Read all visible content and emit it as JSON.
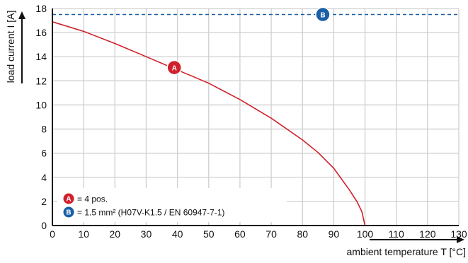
{
  "chart_data": {
    "type": "line",
    "xlabel": "ambient temperature T [°C]",
    "ylabel": "load current I [A]",
    "xlim": [
      0,
      130
    ],
    "ylim": [
      0,
      18
    ],
    "x_ticks": [
      0,
      10,
      20,
      30,
      40,
      50,
      60,
      70,
      80,
      90,
      100,
      110,
      120,
      130
    ],
    "y_ticks": [
      0,
      2,
      4,
      6,
      8,
      10,
      12,
      14,
      16,
      18
    ],
    "grid": true,
    "series": [
      {
        "name": "A",
        "style": "solid",
        "color": "#d0202b",
        "x": [
          0,
          10,
          20,
          30,
          40,
          50,
          60,
          70,
          80,
          85,
          90,
          95,
          97.5,
          99,
          100
        ],
        "y": [
          16.9,
          16.1,
          15.1,
          14.0,
          12.9,
          11.8,
          10.45,
          8.9,
          7.1,
          6.05,
          4.75,
          2.95,
          1.95,
          1.15,
          0
        ]
      },
      {
        "name": "B",
        "style": "dashed",
        "color": "#1a5ea8",
        "x": [
          0,
          130
        ],
        "y": [
          17.5,
          17.5
        ]
      }
    ],
    "markers": [
      {
        "label": "A",
        "x": 39,
        "y": 13.1,
        "color": "#d0202b"
      },
      {
        "label": "B",
        "x": 86.5,
        "y": 17.5,
        "color": "#1a5ea8"
      }
    ],
    "legend": {
      "position": "bottom-left",
      "entries": [
        {
          "marker": "A",
          "text": "= 4 pos.",
          "color": "#d0202b"
        },
        {
          "marker": "B",
          "text": "= 1.5 mm² (H07V-K1.5 / EN 60947-7-1)",
          "color": "#1a5ea8"
        }
      ]
    }
  }
}
